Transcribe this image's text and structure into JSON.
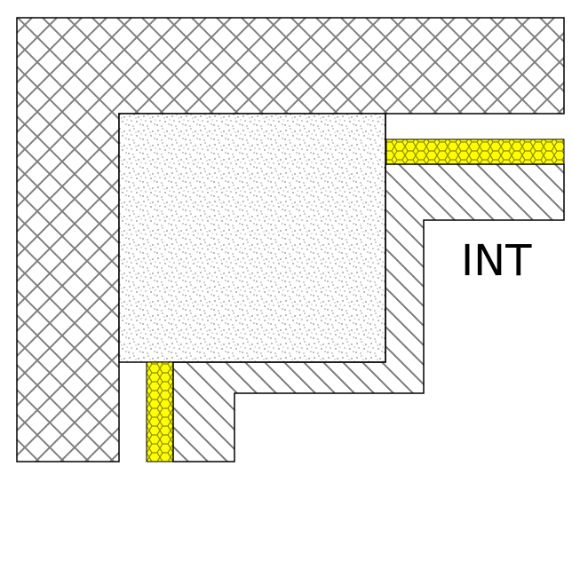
{
  "drawing": {
    "room_label": "INT",
    "materials": [
      {
        "name": "masonry",
        "pattern": "cross-hatch",
        "color": "#808080"
      },
      {
        "name": "concrete",
        "pattern": "stipple",
        "color": "#666666"
      },
      {
        "name": "insulation",
        "pattern": "honeycomb",
        "color": "#ffff00"
      },
      {
        "name": "plaster",
        "pattern": "diagonal-hatch",
        "color": "#808080"
      }
    ]
  }
}
